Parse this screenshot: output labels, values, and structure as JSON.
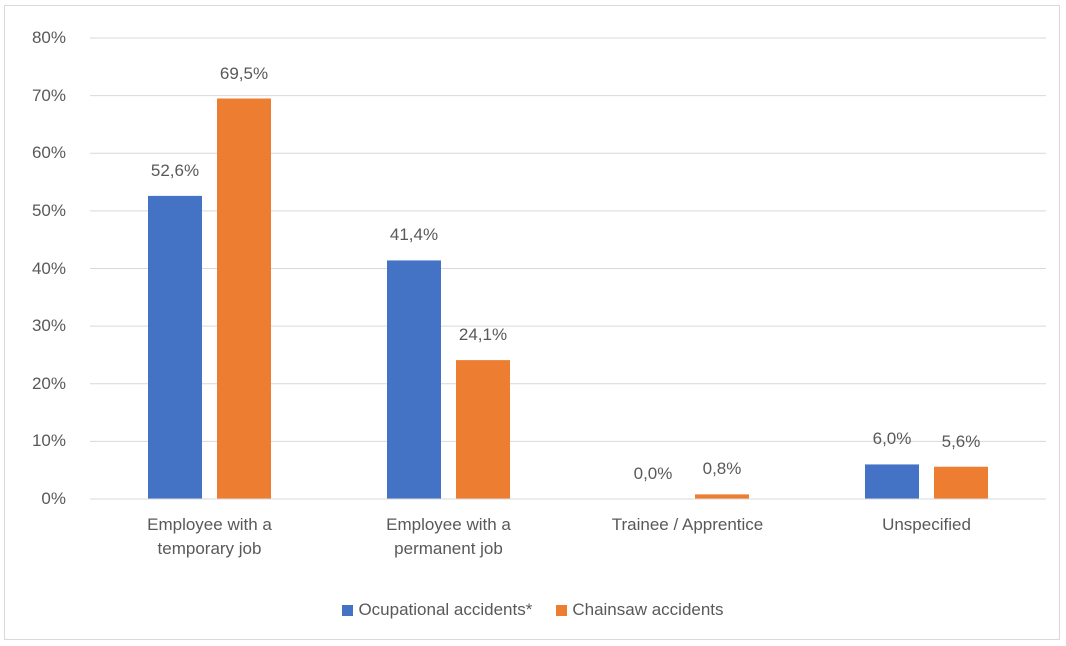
{
  "chart_data": {
    "type": "bar",
    "categories": [
      "Employee with a temporary job",
      "Employee with a permanent job",
      "Trainee / Apprentice",
      "Unspecified"
    ],
    "series": [
      {
        "name": "Ocupational accidents*",
        "color": "#4472c4",
        "values": [
          52.6,
          41.4,
          0.0,
          6.0
        ],
        "value_labels": [
          "52,6%",
          "41,4%",
          "0,0%",
          "6,0%"
        ]
      },
      {
        "name": "Chainsaw accidents",
        "color": "#ed7d31",
        "values": [
          69.5,
          24.1,
          0.8,
          5.6
        ],
        "value_labels": [
          "69,5%",
          "24,1%",
          "0,8%",
          "5,6%"
        ]
      }
    ],
    "ylim": [
      0,
      80
    ],
    "yticks": [
      {
        "value": 0,
        "label": "0%"
      },
      {
        "value": 10,
        "label": "10%"
      },
      {
        "value": 20,
        "label": "20%"
      },
      {
        "value": 30,
        "label": "30%"
      },
      {
        "value": 40,
        "label": "40%"
      },
      {
        "value": 50,
        "label": "50%"
      },
      {
        "value": 60,
        "label": "60%"
      },
      {
        "value": 70,
        "label": "70%"
      },
      {
        "value": 80,
        "label": "80%"
      }
    ],
    "grid": true,
    "legend": "bottom"
  }
}
